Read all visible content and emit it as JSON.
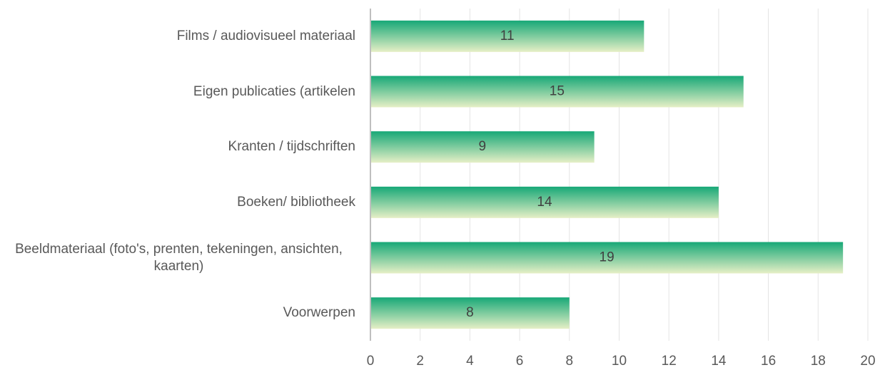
{
  "chart_data": {
    "type": "barh",
    "categories": [
      "Films / audiovisueel materiaal",
      "Eigen publicaties (artikelen",
      "Kranten / tijdschriften",
      "Boeken/ bibliotheek",
      "Beeldmateriaal (foto's, prenten, tekeningen, ansichten, kaarten)",
      "Voorwerpen"
    ],
    "values": [
      11,
      15,
      9,
      14,
      19,
      8
    ],
    "colors": [
      "#17a877",
      "#e6efc6"
    ],
    "xlim": [
      0,
      20
    ],
    "xticks": [
      0,
      2,
      4,
      6,
      8,
      10,
      12,
      14,
      16,
      18,
      20
    ],
    "grid": true
  }
}
